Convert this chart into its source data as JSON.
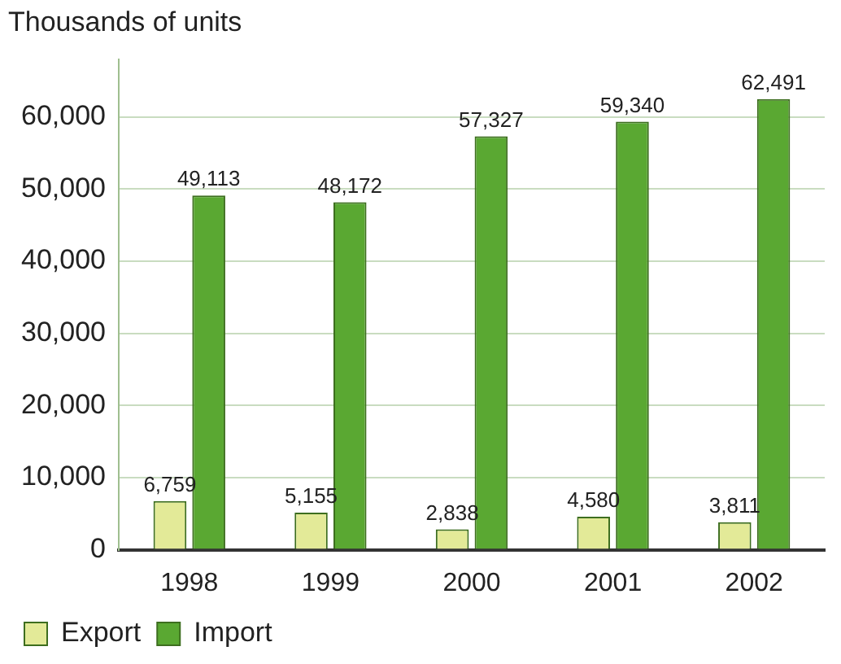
{
  "chart_data": {
    "type": "bar",
    "title": "Thousands of units",
    "categories": [
      "1998",
      "1999",
      "2000",
      "2001",
      "2002"
    ],
    "series": [
      {
        "name": "Export",
        "color": "#e3ea98",
        "values": [
          6759,
          5155,
          2838,
          4580,
          3811
        ],
        "value_labels": [
          "6,759",
          "5,155",
          "2,838",
          "4,580",
          "3,811"
        ]
      },
      {
        "name": "Import",
        "color": "#5aa832",
        "values": [
          49113,
          48172,
          57327,
          59340,
          62491
        ],
        "value_labels": [
          "49,113",
          "48,172",
          "57,327",
          "59,340",
          "62,491"
        ]
      }
    ],
    "ylim": [
      0,
      68000
    ],
    "yticks": [
      {
        "value": 0,
        "label": "0"
      },
      {
        "value": 10000,
        "label": "10,000"
      },
      {
        "value": 20000,
        "label": "20,000"
      },
      {
        "value": 30000,
        "label": "30,000"
      },
      {
        "value": 40000,
        "label": "40,000"
      },
      {
        "value": 50000,
        "label": "50,000"
      },
      {
        "value": 60000,
        "label": "60,000"
      }
    ],
    "grid": "y",
    "legend": "bottom left"
  }
}
